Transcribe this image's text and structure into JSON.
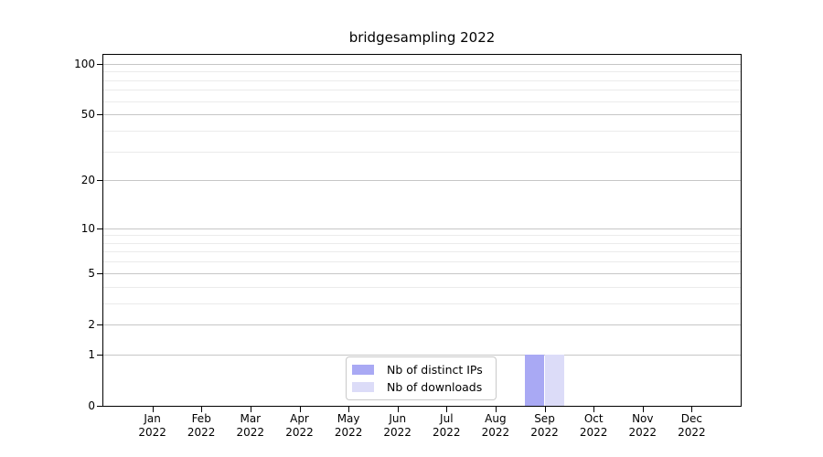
{
  "chart_data": {
    "type": "bar",
    "title": "bridgesampling 2022",
    "categories": [
      {
        "month": "Jan",
        "year": "2022"
      },
      {
        "month": "Feb",
        "year": "2022"
      },
      {
        "month": "Mar",
        "year": "2022"
      },
      {
        "month": "Apr",
        "year": "2022"
      },
      {
        "month": "May",
        "year": "2022"
      },
      {
        "month": "Jun",
        "year": "2022"
      },
      {
        "month": "Jul",
        "year": "2022"
      },
      {
        "month": "Aug",
        "year": "2022"
      },
      {
        "month": "Sep",
        "year": "2022"
      },
      {
        "month": "Oct",
        "year": "2022"
      },
      {
        "month": "Nov",
        "year": "2022"
      },
      {
        "month": "Dec",
        "year": "2022"
      }
    ],
    "series": [
      {
        "name": "Nb of distinct IPs",
        "color": "#a9a9f4",
        "values": [
          0,
          0,
          0,
          0,
          0,
          0,
          0,
          0,
          1,
          0,
          0,
          0
        ]
      },
      {
        "name": "Nb of downloads",
        "color": "#dcdcf8",
        "values": [
          0,
          0,
          0,
          0,
          0,
          0,
          0,
          0,
          1,
          0,
          0,
          0
        ]
      }
    ],
    "y_scale": "log1p",
    "ylim": [
      0,
      112
    ],
    "y_ticks_major": [
      0,
      1,
      2,
      5,
      10,
      20,
      50,
      100
    ],
    "y_ticks_minor": [
      3,
      4,
      6,
      7,
      8,
      9,
      30,
      40,
      60,
      70,
      80,
      90
    ],
    "grid": true,
    "legend_position": "lower center"
  },
  "colors": {
    "grid_major": "#c6c6c6",
    "grid_minor": "#ebebeb",
    "spine": "#000000",
    "background": "#ffffff"
  }
}
